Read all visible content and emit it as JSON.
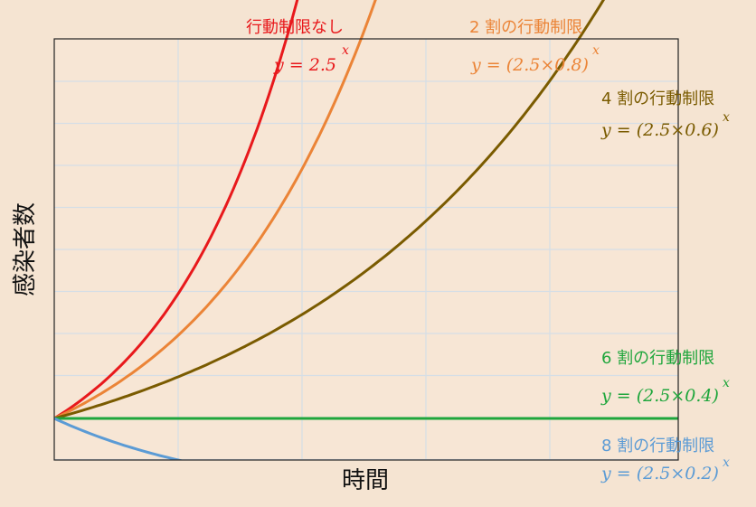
{
  "chart_data": {
    "type": "line",
    "title": "",
    "xlabel": "時間",
    "ylabel": "感染者数",
    "grid": true,
    "x_ticks_labeled": false,
    "y_ticks_labeled": false,
    "series": [
      {
        "name": "行動制限なし",
        "formula": "y = 2.5",
        "exponent": "x",
        "base": 2.5,
        "color": "#e8191c"
      },
      {
        "name": "2 割の行動制限",
        "formula": "y = (2.5×0.8)",
        "exponent": "x",
        "base": 2.0,
        "color": "#eb8437"
      },
      {
        "name": "4 割の行動制限",
        "formula": "y = (2.5×0.6)",
        "exponent": "x",
        "base": 1.5,
        "color": "#7a5b00"
      },
      {
        "name": "6 割の行動制限",
        "formula": "y = (2.5×0.4)",
        "exponent": "x",
        "base": 1.0,
        "color": "#1fa63c"
      },
      {
        "name": "8 割の行動制限",
        "formula": "y = (2.5×0.2)",
        "exponent": "x",
        "base": 0.5,
        "color": "#5b9bd5"
      }
    ],
    "background_color": "#f5e4d2",
    "plot_background_color": "#f7e6d5",
    "grid_color": "#d5dee6"
  }
}
